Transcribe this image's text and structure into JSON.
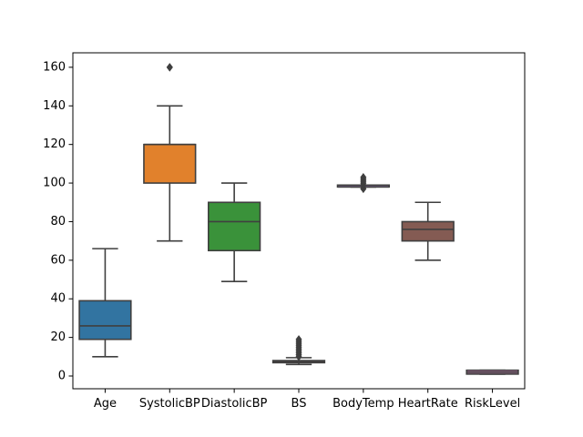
{
  "chart_data": {
    "type": "box",
    "title": "",
    "xlabel": "",
    "ylabel": "",
    "ylim": [
      -6.6,
      167.5
    ],
    "yticks": [
      0,
      20,
      40,
      60,
      80,
      100,
      120,
      140,
      160
    ],
    "grid": false,
    "categories": [
      "Age",
      "SystolicBP",
      "DiastolicBP",
      "BS",
      "BodyTemp",
      "HeartRate",
      "RiskLevel"
    ],
    "series": [
      {
        "category": "Age",
        "color": "#3274a1",
        "whisker_low": 10,
        "q1": 19,
        "median": 26,
        "q3": 39,
        "whisker_high": 66,
        "outliers": []
      },
      {
        "category": "SystolicBP",
        "color": "#e1812c",
        "whisker_low": 70,
        "q1": 100,
        "median": 120,
        "q3": 120,
        "whisker_high": 140,
        "outliers": [
          160,
          160
        ]
      },
      {
        "category": "DiastolicBP",
        "color": "#3a923a",
        "whisker_low": 49,
        "q1": 65,
        "median": 80,
        "q3": 90,
        "whisker_high": 100,
        "outliers": []
      },
      {
        "category": "BS",
        "color": "#c03d3e",
        "whisker_low": 6,
        "q1": 6.9,
        "median": 7.5,
        "q3": 8,
        "whisker_high": 9.5,
        "outliers": [
          10,
          11,
          12,
          13,
          14,
          15,
          16,
          17,
          18,
          19
        ]
      },
      {
        "category": "BodyTemp",
        "color": "#9372b2",
        "whisker_low": 98,
        "q1": 98,
        "median": 98,
        "q3": 98,
        "whisker_high": 98,
        "outliers": [
          97,
          99,
          100,
          101,
          102,
          103
        ]
      },
      {
        "category": "HeartRate",
        "color": "#845b53",
        "whisker_low": 60,
        "q1": 70,
        "median": 76,
        "q3": 80,
        "whisker_high": 90,
        "outliers": []
      },
      {
        "category": "RiskLevel",
        "color": "#d684bd",
        "whisker_low": 1,
        "q1": 1,
        "median": 2,
        "q3": 3,
        "whisker_high": 3,
        "outliers": []
      }
    ]
  }
}
